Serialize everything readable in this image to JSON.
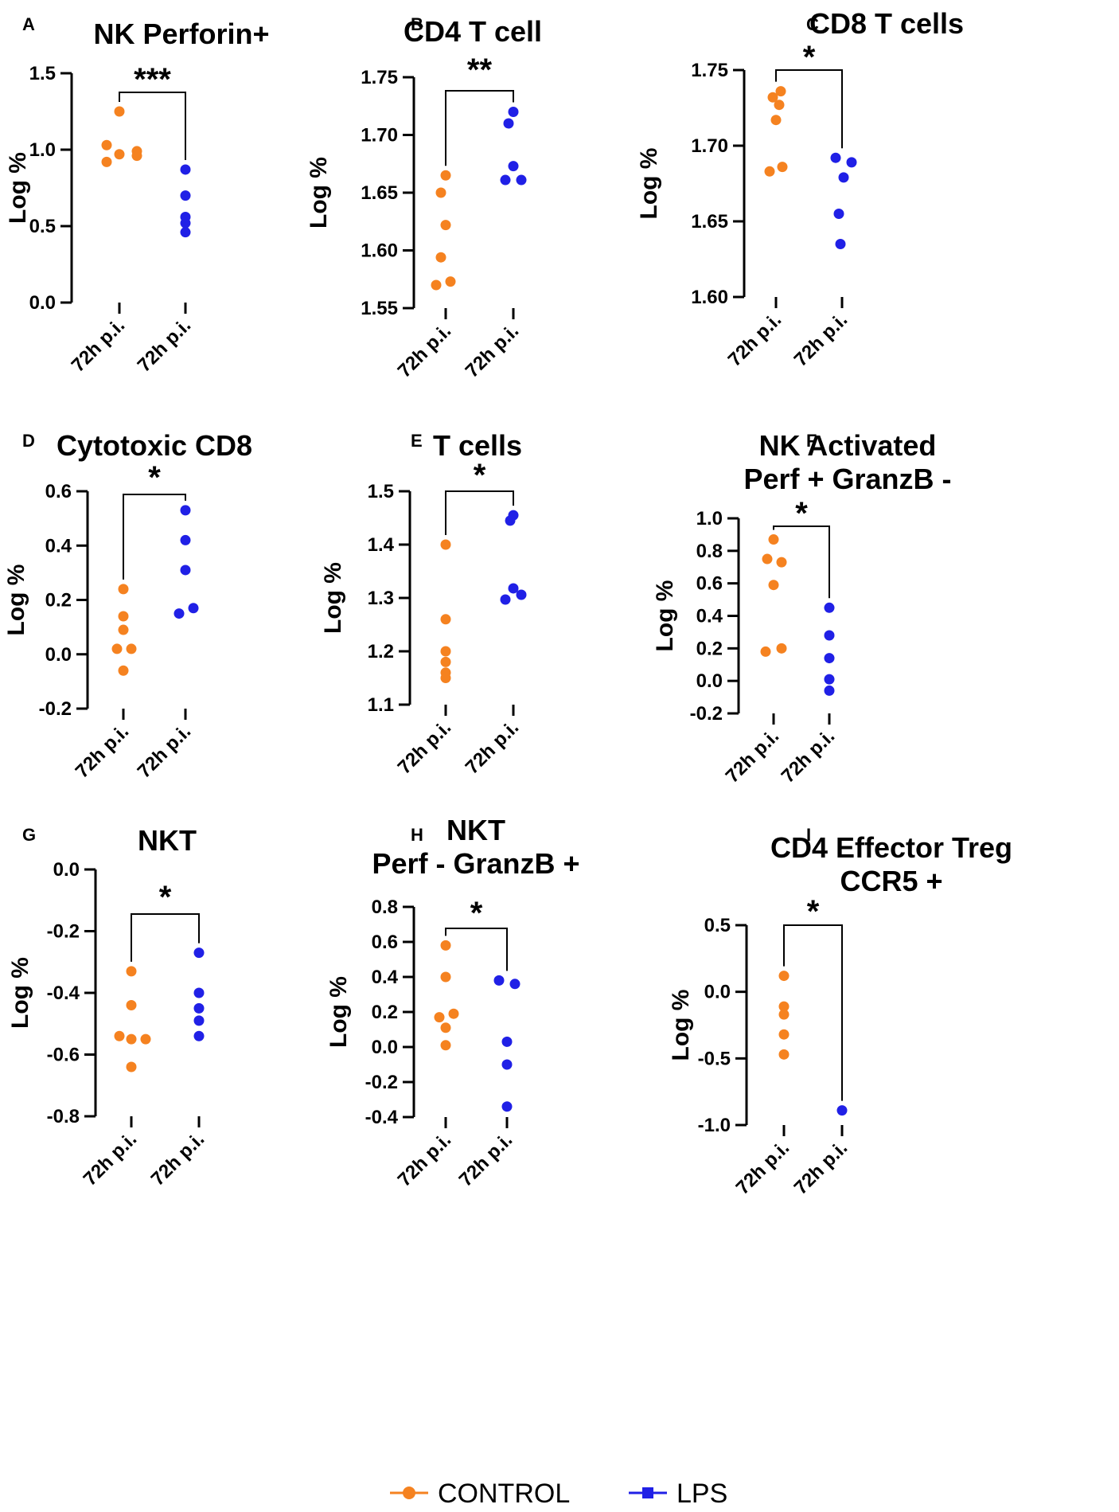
{
  "figure": {
    "colors": {
      "control": "#F58220",
      "lps": "#2020E6"
    },
    "legend": [
      {
        "label": "CONTROL",
        "color": "#F58220",
        "marker": "circle"
      },
      {
        "label": "LPS",
        "color": "#2020E6",
        "marker": "square"
      }
    ]
  },
  "chart_data": [
    {
      "type": "scatter",
      "panel": "A",
      "title": [
        "NK Perforin+"
      ],
      "ylabel": "Log %",
      "categories": [
        "72h p.i.",
        "72h p.i."
      ],
      "ylim": [
        0.0,
        1.5
      ],
      "yticks": [
        "0.0",
        "0.5",
        "1.0",
        "1.5"
      ],
      "series": [
        {
          "name": "CONTROL",
          "values": [
            1.25,
            1.03,
            0.97,
            0.99,
            0.96,
            0.92
          ]
        },
        {
          "name": "LPS",
          "values": [
            0.87,
            0.7,
            0.56,
            0.52,
            0.46
          ]
        }
      ],
      "significance": "***"
    },
    {
      "type": "scatter",
      "panel": "B",
      "title": [
        "CD4 T cell"
      ],
      "ylabel": "Log %",
      "categories": [
        "72h p.i.",
        "72h p.i."
      ],
      "ylim": [
        1.55,
        1.75
      ],
      "yticks": [
        "1.55",
        "1.60",
        "1.65",
        "1.70",
        "1.75"
      ],
      "series": [
        {
          "name": "CONTROL",
          "values": [
            1.665,
            1.65,
            1.622,
            1.594,
            1.573,
            1.57
          ]
        },
        {
          "name": "LPS",
          "values": [
            1.72,
            1.71,
            1.673,
            1.661,
            1.661
          ]
        }
      ],
      "significance": "**"
    },
    {
      "type": "scatter",
      "panel": "C",
      "title": [
        "CD8 T cells"
      ],
      "ylabel": "Log %",
      "categories": [
        "72h p.i.",
        "72h p.i."
      ],
      "ylim": [
        1.6,
        1.75
      ],
      "yticks": [
        "1.60",
        "1.65",
        "1.70",
        "1.75"
      ],
      "series": [
        {
          "name": "CONTROL",
          "values": [
            1.736,
            1.732,
            1.727,
            1.717,
            1.686,
            1.683
          ]
        },
        {
          "name": "LPS",
          "values": [
            1.692,
            1.689,
            1.679,
            1.655,
            1.635
          ]
        }
      ],
      "significance": "*"
    },
    {
      "type": "scatter",
      "panel": "D",
      "title": [
        "Cytotoxic CD8"
      ],
      "ylabel": "Log %",
      "categories": [
        "72h p.i.",
        "72h p.i."
      ],
      "ylim": [
        -0.2,
        0.6
      ],
      "yticks": [
        "-0.2",
        "0.0",
        "0.2",
        "0.4",
        "0.6"
      ],
      "series": [
        {
          "name": "CONTROL",
          "values": [
            0.24,
            0.14,
            0.09,
            0.02,
            0.02,
            -0.06
          ]
        },
        {
          "name": "LPS",
          "values": [
            0.53,
            0.42,
            0.31,
            0.17,
            0.15
          ]
        }
      ],
      "significance": "*"
    },
    {
      "type": "scatter",
      "panel": "E",
      "title": [
        "T cells"
      ],
      "ylabel": "Log %",
      "categories": [
        "72h p.i.",
        "72h p.i."
      ],
      "ylim": [
        1.1,
        1.5
      ],
      "yticks": [
        "1.1",
        "1.2",
        "1.3",
        "1.4",
        "1.5"
      ],
      "series": [
        {
          "name": "CONTROL",
          "values": [
            1.4,
            1.26,
            1.2,
            1.18,
            1.16,
            1.15
          ]
        },
        {
          "name": "LPS",
          "values": [
            1.455,
            1.445,
            1.318,
            1.306,
            1.297
          ]
        }
      ],
      "significance": "*"
    },
    {
      "type": "scatter",
      "panel": "F",
      "title": [
        "NK Activated",
        "Perf + GranzB -"
      ],
      "ylabel": "Log %",
      "categories": [
        "72h p.i.",
        "72h p.i."
      ],
      "ylim": [
        -0.2,
        1.0
      ],
      "yticks": [
        "-0.2",
        "0.0",
        "0.2",
        "0.4",
        "0.6",
        "0.8",
        "1.0"
      ],
      "series": [
        {
          "name": "CONTROL",
          "values": [
            0.87,
            0.75,
            0.73,
            0.59,
            0.2,
            0.18
          ]
        },
        {
          "name": "LPS",
          "values": [
            0.45,
            0.28,
            0.14,
            0.01,
            -0.06
          ]
        }
      ],
      "significance": "*"
    },
    {
      "type": "scatter",
      "panel": "G",
      "title": [
        "NKT"
      ],
      "ylabel": "Log %",
      "categories": [
        "72h p.i.",
        "72h p.i."
      ],
      "ylim": [
        -0.8,
        0.0
      ],
      "yticks": [
        "-0.8",
        "-0.6",
        "-0.4",
        "-0.2",
        "0.0"
      ],
      "series": [
        {
          "name": "CONTROL",
          "values": [
            -0.33,
            -0.44,
            -0.54,
            -0.55,
            -0.55,
            -0.64
          ]
        },
        {
          "name": "LPS",
          "values": [
            -0.27,
            -0.4,
            -0.45,
            -0.49,
            -0.54
          ]
        }
      ],
      "significance": "*"
    },
    {
      "type": "scatter",
      "panel": "H",
      "title": [
        "NKT",
        "Perf - GranzB +"
      ],
      "ylabel": "Log %",
      "categories": [
        "72h p.i.",
        "72h p.i."
      ],
      "ylim": [
        -0.4,
        0.8
      ],
      "yticks": [
        "-0.4",
        "-0.2",
        "0.0",
        "0.2",
        "0.4",
        "0.6",
        "0.8"
      ],
      "series": [
        {
          "name": "CONTROL",
          "values": [
            0.58,
            0.4,
            0.19,
            0.17,
            0.11,
            0.01
          ]
        },
        {
          "name": "LPS",
          "values": [
            0.38,
            0.36,
            0.03,
            -0.1,
            -0.34
          ]
        }
      ],
      "significance": "*"
    },
    {
      "type": "scatter",
      "panel": "I",
      "title": [
        "CD4 Effector Treg",
        "CCR5 +"
      ],
      "ylabel": "Log %",
      "categories": [
        "72h p.i.",
        "72h p.i."
      ],
      "ylim": [
        -1.0,
        0.5
      ],
      "yticks": [
        "-1.0",
        "-0.5",
        "0.0",
        "0.5"
      ],
      "series": [
        {
          "name": "CONTROL",
          "values": [
            0.12,
            -0.11,
            -0.17,
            -0.32,
            -0.47
          ]
        },
        {
          "name": "LPS",
          "values": [
            -0.89
          ]
        }
      ],
      "significance": "*"
    }
  ]
}
